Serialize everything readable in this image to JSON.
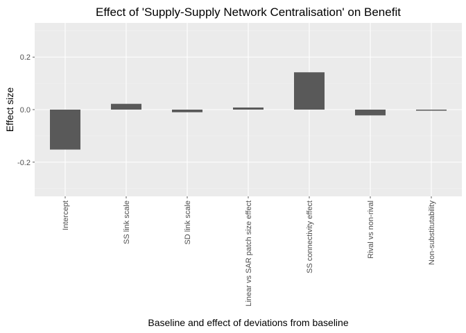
{
  "chart_data": {
    "type": "bar",
    "title": "Effect of 'Supply-Supply Network Centralisation' on Benefit",
    "xlabel": "Baseline and effect of deviations from baseline",
    "ylabel": "Effect size",
    "categories": [
      "Intercept",
      "SS link scale",
      "SD link scale",
      "Linear vs SAR patch size effect",
      "SS connectivity effect",
      "Rival vs non-rival",
      "Non-substitutability"
    ],
    "values": [
      -0.152,
      0.022,
      -0.01,
      0.008,
      0.142,
      -0.022,
      -0.004
    ],
    "ylim": [
      -0.33,
      0.33
    ],
    "yticks": [
      -0.2,
      0.0,
      0.2
    ],
    "ytick_labels": [
      "-0.2",
      "0.0",
      "0.2"
    ],
    "grid": true,
    "legend": "none",
    "colors": {
      "bar": "#595959",
      "panel": "#ebebeb"
    }
  }
}
